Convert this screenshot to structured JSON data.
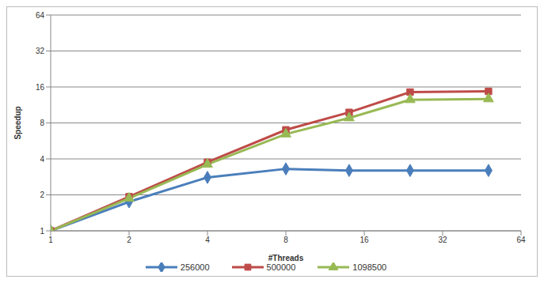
{
  "chart_data": {
    "type": "line",
    "x_label": "#Threads",
    "y_label": "Speedup",
    "log": true,
    "grid": true,
    "legend": "bottom",
    "x": [
      1,
      2,
      4,
      8,
      14,
      24,
      48
    ],
    "xlim": [
      1,
      64
    ],
    "xticks": [
      1,
      2,
      4,
      8,
      16,
      32,
      64
    ],
    "ylim": [
      1,
      64
    ],
    "yticks": [
      1,
      2,
      4,
      8,
      16,
      32,
      64
    ],
    "series": [
      {
        "name": "256000",
        "color": "#4a7ebb",
        "marker": "diamond",
        "values": [
          1,
          1.75,
          2.8,
          3.3,
          3.2,
          3.2,
          3.2
        ]
      },
      {
        "name": "500000",
        "color": "#be4b48",
        "marker": "square",
        "values": [
          1,
          1.93,
          3.75,
          7.0,
          9.8,
          14.5,
          14.7
        ]
      },
      {
        "name": "1098500",
        "color": "#98b954",
        "marker": "triangle",
        "values": [
          1,
          1.87,
          3.6,
          6.45,
          8.8,
          12.5,
          12.7
        ]
      }
    ]
  }
}
